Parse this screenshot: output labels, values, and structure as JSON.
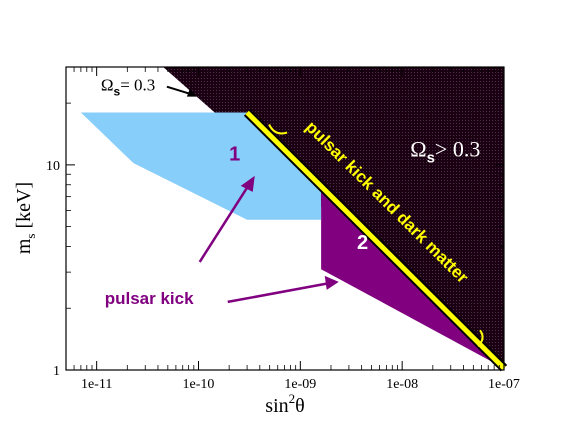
{
  "chart_data": {
    "type": "area",
    "xscale": "log",
    "yscale": "log",
    "xlim": [
      5e-12,
      1e-07
    ],
    "ylim": [
      1,
      30
    ],
    "x_ticks": [
      {
        "value": 1e-11,
        "label": "1e-11"
      },
      {
        "value": 1e-10,
        "label": "1e-10"
      },
      {
        "value": 1e-09,
        "label": "1e-09"
      },
      {
        "value": 1e-08,
        "label": "1e-08"
      },
      {
        "value": 1e-07,
        "label": "1e-07"
      }
    ],
    "y_ticks": [
      {
        "value": 1,
        "label": "1"
      },
      {
        "value": 10,
        "label": "10"
      }
    ],
    "xlabel": {
      "main": "sin",
      "sup": "2",
      "tail": "θ"
    },
    "ylabel": {
      "main": "m",
      "sub": "s",
      "tail": "  [keV]"
    },
    "regions": [
      {
        "name": "excluded",
        "color": "#1a0010",
        "points": [
          [
            4.5e-11,
            30
          ],
          [
            1e-07,
            30
          ],
          [
            1e-07,
            1.02
          ]
        ],
        "label": {
          "main": "Ω",
          "sub": "s",
          "tail": "> 0.3",
          "x": 1.2e-08,
          "y": 11,
          "color": "#ffffff"
        }
      },
      {
        "name": "region-1",
        "color": "#87cefa",
        "points": [
          [
            7e-12,
            18
          ],
          [
            3e-10,
            18
          ],
          [
            1.6e-09,
            8.2
          ],
          [
            1.6e-09,
            5.4
          ],
          [
            3e-10,
            5.4
          ],
          [
            2.3e-11,
            10.2
          ],
          [
            7e-12,
            18
          ]
        ],
        "label": {
          "text": "1",
          "x": 2e-10,
          "y": 10.5,
          "color": "#800080"
        }
      },
      {
        "name": "region-2",
        "color": "#800080",
        "points": [
          [
            1.6e-09,
            8.2
          ],
          [
            1e-07,
            1.02
          ],
          [
            1.6e-09,
            3.1
          ]
        ],
        "label": {
          "text": "2",
          "x": 3.6e-09,
          "y": 3.9,
          "color": "#ffffff"
        }
      },
      {
        "name": "pulsar-kick-and-dark-matter",
        "color": "#ffff00",
        "points": [
          [
            3e-10,
            18
          ],
          [
            1e-07,
            1.02
          ]
        ],
        "label": {
          "text": "pulsar kick and dark matter",
          "x": 6.5e-09,
          "y": 6.3,
          "color": "#ffff00"
        }
      }
    ],
    "annotations": [
      {
        "name": "omega-0.3",
        "main": "Ω",
        "sub": "s",
        "tail": "= 0.3",
        "x": 1.1e-11,
        "y": 23
      },
      {
        "name": "pulsar-kick",
        "text": "pulsar kick",
        "x": 1.2e-11,
        "y": 2.1,
        "color": "#800080"
      }
    ],
    "legend": "none",
    "grid": false
  }
}
